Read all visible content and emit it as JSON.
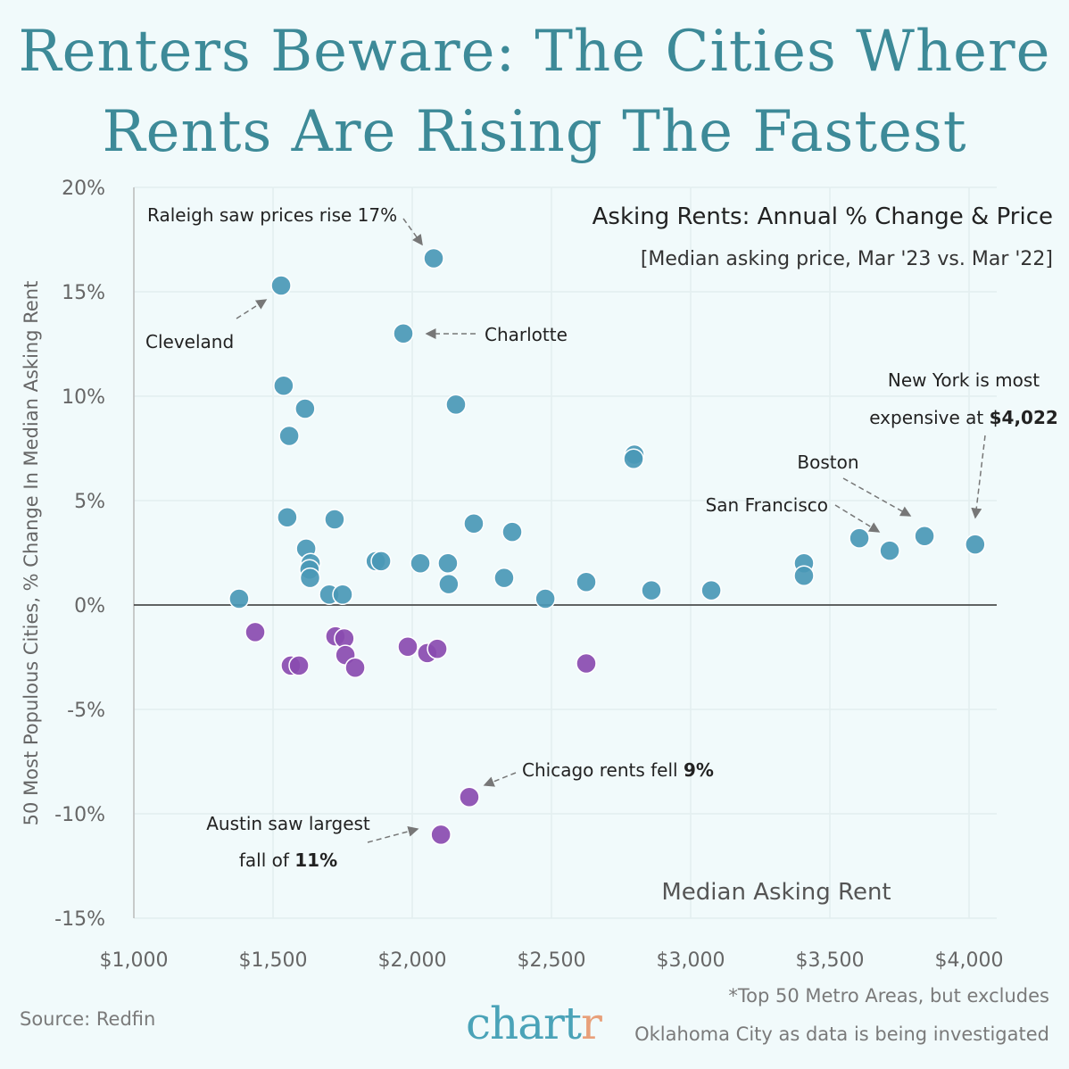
{
  "title_line1": "Renters Beware: The Cities Where",
  "title_line2": "Rents Are Rising The Fastest",
  "footer": {
    "source": "Source: Redfin",
    "note_line1": "*Top 50 Metro Areas, but excludes",
    "note_line2": "Oklahoma City as data is being investigated",
    "logo_main": "chart",
    "logo_accent": "r"
  },
  "colors": {
    "background": "#f1fafb",
    "title": "#3d8a98",
    "rising": "#4a98b6",
    "falling": "#8a4bb0"
  },
  "chart_data": {
    "type": "scatter",
    "title": "Asking Rents: Annual % Change & Price",
    "subtitle": "[Median asking price, Mar '23 vs. Mar '22]",
    "xlabel": "Median Asking Rent",
    "ylabel": "50 Most Populous Cities, % Change In Median Asking Rent",
    "xlim": [
      1000,
      4000
    ],
    "ylim": [
      -15,
      20
    ],
    "xticks": [
      "$1,000",
      "$1,500",
      "$2,000",
      "$2,500",
      "$3,000",
      "$3,500",
      "$4,000"
    ],
    "xtick_values": [
      1000,
      1500,
      2000,
      2500,
      3000,
      3500,
      4000
    ],
    "yticks": [
      "20%",
      "15%",
      "10%",
      "5%",
      "0%",
      "-5%",
      "-10%",
      "-15%"
    ],
    "ytick_values": [
      20,
      15,
      10,
      5,
      0,
      -5,
      -10,
      -15
    ],
    "grid": true,
    "series": [
      {
        "color": "#4a98b6",
        "points": [
          [
            1378,
            0.3
          ],
          [
            2077,
            16.6
          ],
          [
            1529,
            15.3
          ],
          [
            1968,
            13.0
          ],
          [
            1538,
            10.5
          ],
          [
            1615,
            9.4
          ],
          [
            2157,
            9.6
          ],
          [
            1558,
            8.1
          ],
          [
            2798,
            7.2
          ],
          [
            2795,
            7.0
          ],
          [
            1551,
            4.2
          ],
          [
            1721,
            4.1
          ],
          [
            2221,
            3.9
          ],
          [
            2359,
            3.5
          ],
          [
            1619,
            2.7
          ],
          [
            1635,
            2.0
          ],
          [
            1631,
            1.7
          ],
          [
            1633,
            1.3
          ],
          [
            1869,
            2.1
          ],
          [
            1888,
            2.1
          ],
          [
            2029,
            2.0
          ],
          [
            2128,
            2.0
          ],
          [
            2131,
            1.0
          ],
          [
            2330,
            1.3
          ],
          [
            1702,
            0.5
          ],
          [
            1750,
            0.5
          ],
          [
            2478,
            0.3
          ],
          [
            2625,
            1.1
          ],
          [
            2859,
            0.7
          ],
          [
            3074,
            0.7
          ],
          [
            3407,
            2.0
          ],
          [
            3407,
            1.4
          ],
          [
            3606,
            3.2
          ],
          [
            3715,
            2.6
          ],
          [
            3840,
            3.3
          ],
          [
            4022,
            2.9
          ]
        ]
      },
      {
        "color": "#8a4bb0",
        "points": [
          [
            1436,
            -1.3
          ],
          [
            1564,
            -2.9
          ],
          [
            1593,
            -2.9
          ],
          [
            1724,
            -1.5
          ],
          [
            1756,
            -1.6
          ],
          [
            1760,
            -2.4
          ],
          [
            1795,
            -3.0
          ],
          [
            1984,
            -2.0
          ],
          [
            2054,
            -2.3
          ],
          [
            2090,
            -2.1
          ],
          [
            2625,
            -2.8
          ],
          [
            2205,
            -9.2
          ],
          [
            2103,
            -11.0
          ]
        ]
      }
    ],
    "annotations": [
      {
        "id": "raleigh",
        "lines": [
          [
            "Raleigh saw prices rise 17%",
            ""
          ]
        ],
        "target": [
          2077,
          16.6
        ]
      },
      {
        "id": "cleveland",
        "lines": [
          [
            "Cleveland",
            ""
          ]
        ],
        "target": [
          1529,
          15.3
        ]
      },
      {
        "id": "charlotte",
        "lines": [
          [
            "Charlotte",
            ""
          ]
        ],
        "target": [
          1968,
          13.0
        ]
      },
      {
        "id": "newyork",
        "lines": [
          [
            "New York is most",
            ""
          ],
          [
            "expensive at ",
            "$4,022"
          ]
        ],
        "target": [
          4022,
          2.9
        ]
      },
      {
        "id": "boston",
        "lines": [
          [
            "Boston",
            ""
          ]
        ],
        "target": [
          3840,
          3.3
        ]
      },
      {
        "id": "sanfrancisco",
        "lines": [
          [
            "San Francisco",
            ""
          ]
        ],
        "target": [
          3715,
          2.6
        ]
      },
      {
        "id": "chicago",
        "lines": [
          [
            "Chicago rents fell ",
            "9%"
          ]
        ],
        "target": [
          2205,
          -9.2
        ]
      },
      {
        "id": "austin",
        "lines": [
          [
            "Austin saw largest",
            ""
          ],
          [
            "fall of ",
            "11%"
          ]
        ],
        "target": [
          2103,
          -11.0
        ]
      }
    ]
  }
}
